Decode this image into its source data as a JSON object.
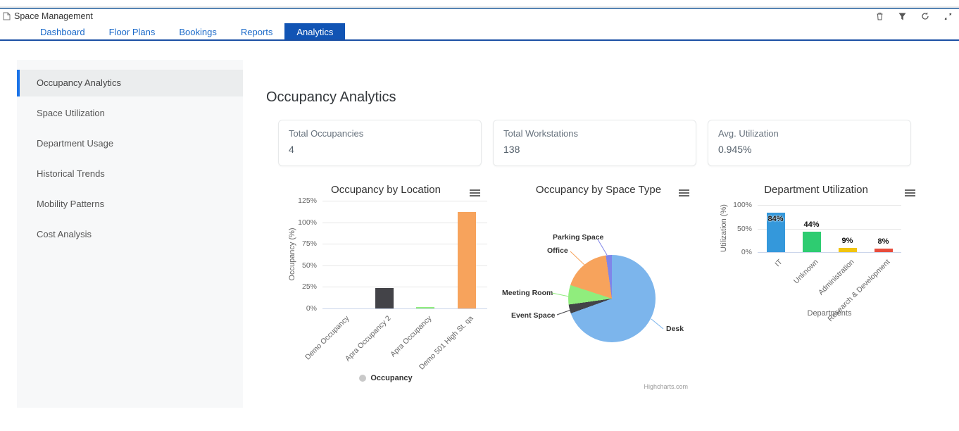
{
  "window": {
    "title": "Space Management",
    "action_icons": [
      "trash-icon",
      "filter-icon",
      "refresh-icon",
      "expand-icon"
    ]
  },
  "tabs": [
    "Dashboard",
    "Floor Plans",
    "Bookings",
    "Reports",
    "Analytics"
  ],
  "active_tab": "Analytics",
  "sidebar": {
    "items": [
      "Occupancy Analytics",
      "Space Utilization",
      "Department Usage",
      "Historical Trends",
      "Mobility Patterns",
      "Cost Analysis"
    ],
    "active": "Occupancy Analytics"
  },
  "page": {
    "title": "Occupancy Analytics"
  },
  "cards": [
    {
      "label": "Total Occupancies",
      "value": "4"
    },
    {
      "label": "Total Workstations",
      "value": "138"
    },
    {
      "label": "Avg. Utilization",
      "value": "0.945%"
    }
  ],
  "colors": {
    "active_tab_bg": "#1154b4",
    "tab_text": "#1b6ac9",
    "tab_underline": "#1b4fa4",
    "sidebar_active_accent": "#1a73e8"
  },
  "chart_data": [
    {
      "type": "bar",
      "title": "Occupancy by Location",
      "ylabel": "Occupancy (%)",
      "xlabel": "",
      "categories": [
        "Demo Occupancy",
        "Apra Occupancy 2",
        "Apra Occupancy",
        "Demo 501 High St. qa"
      ],
      "values": [
        0,
        24,
        2,
        112
      ],
      "colors": [
        "#7cb5ec",
        "#434348",
        "#90ed7d",
        "#f7a35c"
      ],
      "ylim": [
        0,
        125
      ],
      "yticks": [
        0,
        25,
        50,
        75,
        100,
        125
      ],
      "grid": true,
      "legend": [
        {
          "label": "Occupancy",
          "color": "#c9c9c9"
        }
      ],
      "legend_position": "bottom"
    },
    {
      "type": "pie",
      "title": "Occupancy by Space Type",
      "slices": [
        {
          "label": "Desk",
          "value": 69.5,
          "color": "#7cb5ec"
        },
        {
          "label": "Event Space",
          "value": 3.3,
          "color": "#434348"
        },
        {
          "label": "Meeting Room",
          "value": 7.2,
          "color": "#90ed7d"
        },
        {
          "label": "Office",
          "value": 17.8,
          "color": "#f7a35c"
        },
        {
          "label": "Parking Space",
          "value": 2.2,
          "color": "#8085e9"
        }
      ],
      "credit": "Highcharts.com"
    },
    {
      "type": "bar",
      "title": "Department Utilization",
      "ylabel": "Utilization (%)",
      "xlabel": "Departments",
      "categories": [
        "IT",
        "Unknown",
        "Administration",
        "Research & Development"
      ],
      "values": [
        84,
        44,
        9,
        8
      ],
      "data_labels": [
        "84%",
        "44%",
        "9%",
        "8%"
      ],
      "colors": [
        "#3498db",
        "#2ecc71",
        "#f1c40f",
        "#e74c3c"
      ],
      "ylim": [
        0,
        100
      ],
      "yticks": [
        0,
        50,
        100
      ],
      "grid": true
    }
  ]
}
